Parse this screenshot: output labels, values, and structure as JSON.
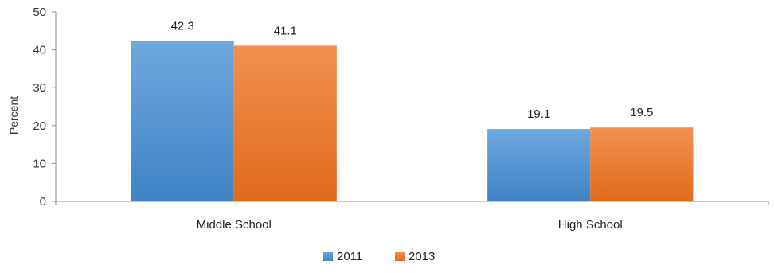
{
  "chart_data": {
    "type": "bar",
    "categories": [
      "Middle School",
      "High School"
    ],
    "series": [
      {
        "name": "2011",
        "values": [
          42.3,
          19.1
        ],
        "color": "#5b9bd5"
      },
      {
        "name": "2013",
        "values": [
          41.1,
          19.5
        ],
        "color": "#ed7d31"
      }
    ],
    "ylabel": "Percent",
    "ylim": [
      0,
      50
    ],
    "yticks": [
      0,
      10,
      20,
      30,
      40,
      50
    ],
    "data_labels": true,
    "grid": false,
    "legend": "bottom"
  }
}
